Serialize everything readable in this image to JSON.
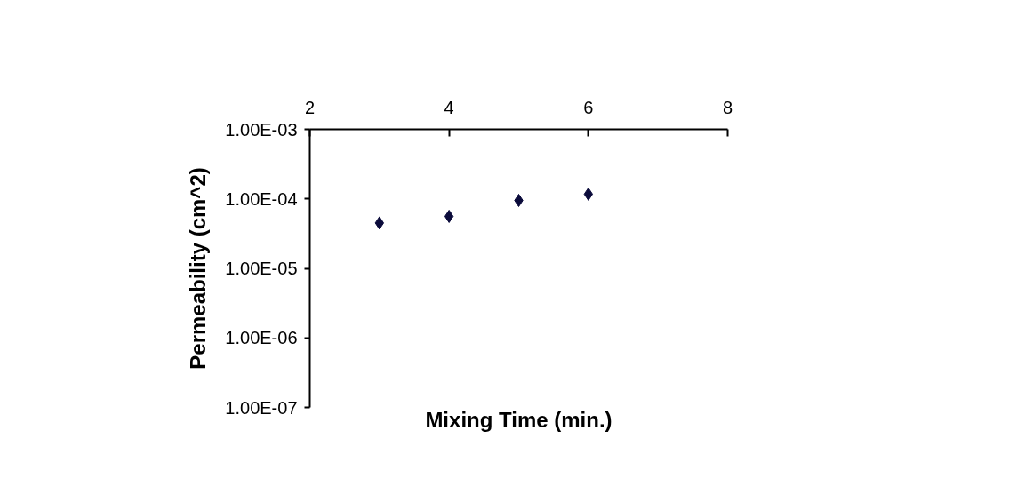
{
  "chart_data": {
    "type": "scatter",
    "xlabel": "Mixing Time (min.)",
    "ylabel": "Permeability (cm^2)",
    "x": [
      3,
      4,
      5,
      6
    ],
    "series": [
      {
        "color": "#0b0b3b",
        "values": [
          4.5e-05,
          5.6e-05,
          9.5e-05,
          0.000117
        ]
      }
    ],
    "xlim": [
      2,
      8
    ],
    "xticks": [
      2,
      4,
      6,
      8
    ],
    "ylim": [
      1e-07,
      0.001
    ],
    "yticks": [
      {
        "value": 1e-07,
        "label": "1.00E-07"
      },
      {
        "value": 1e-06,
        "label": "1.00E-06"
      },
      {
        "value": 1e-05,
        "label": "1.00E-05"
      },
      {
        "value": 0.0001,
        "label": "1.00E-04"
      },
      {
        "value": 0.001,
        "label": "1.00E-03"
      }
    ],
    "log": "y",
    "grid": false,
    "marker": "diamond",
    "tick_labels": "xy"
  }
}
